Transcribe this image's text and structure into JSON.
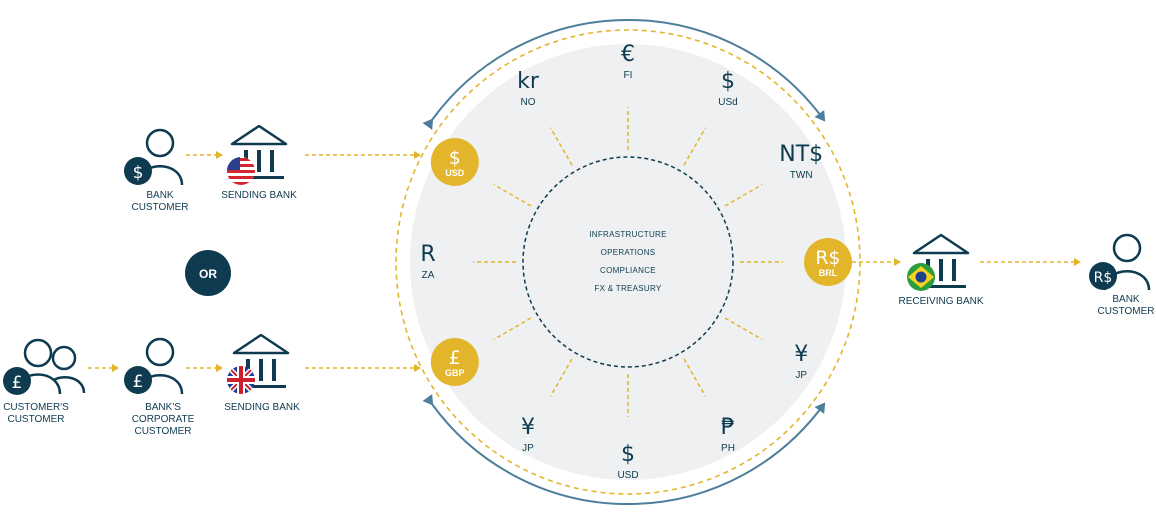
{
  "colors": {
    "navy": "#0e3b50",
    "gold": "#e3b52a",
    "steel": "#4d7f9c",
    "hub_fill": "#eef0f1"
  },
  "hub": {
    "core_lines": [
      "INFRASTRUCTURE",
      "OPERATIONS",
      "COMPLIANCE",
      "FX & TREASURY"
    ],
    "spokes": [
      {
        "symbol": "€",
        "code": "FI"
      },
      {
        "symbol": "$",
        "code": "USd"
      },
      {
        "symbol": "NT$",
        "code": "TWN"
      },
      {
        "symbol": "R$",
        "code": "BRL",
        "coin": true
      },
      {
        "symbol": "¥",
        "code": "JP"
      },
      {
        "symbol": "₱",
        "code": "PH"
      },
      {
        "symbol": "$",
        "code": "USD"
      },
      {
        "symbol": "¥",
        "code": "JP"
      },
      {
        "symbol": "£",
        "code": "GBP",
        "coin": true
      },
      {
        "symbol": "R",
        "code": "ZA"
      },
      {
        "symbol": "$",
        "code": "USD",
        "coin": true
      },
      {
        "symbol": "kr",
        "code": "NO"
      }
    ]
  },
  "senders": {
    "top": {
      "customer_symbol": "$",
      "customer_label": [
        "BANK",
        "CUSTOMER"
      ],
      "bank_label": "SENDING BANK",
      "flag": "us-flag"
    },
    "or_label": "OR",
    "bottom": {
      "customer1_symbol": "£",
      "customer1_label": [
        "CUSTOMER'S",
        "CUSTOMER"
      ],
      "customer2_symbol": "£",
      "customer2_label": [
        "BANK'S",
        "CORPORATE",
        "CUSTOMER"
      ],
      "bank_label": "SENDING BANK",
      "flag": "uk-flag"
    }
  },
  "receiver": {
    "bank_label": "RECEIVING BANK",
    "flag": "brazil-flag",
    "customer_symbol": "R$",
    "customer_label": [
      "BANK",
      "CUSTOMER"
    ]
  }
}
